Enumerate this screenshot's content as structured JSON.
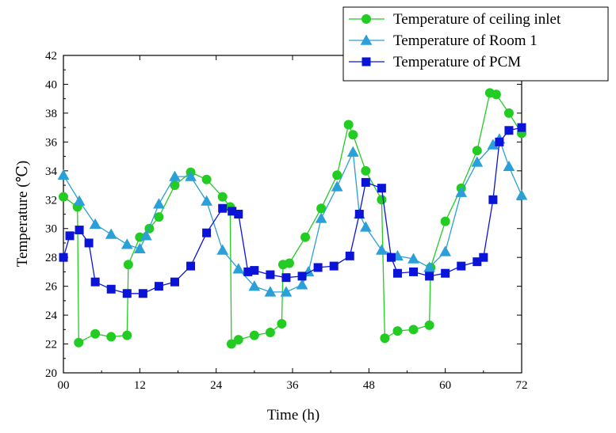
{
  "chart_data": {
    "type": "line",
    "title": "",
    "xlabel": "Time (h)",
    "ylabel": "Temperature (℃)",
    "xlim": [
      0,
      72
    ],
    "ylim": [
      20,
      42
    ],
    "x_ticks": [
      0,
      12,
      24,
      36,
      48,
      60,
      72
    ],
    "x_tick_labels": [
      "00",
      "12",
      "24",
      "36",
      "48",
      "60",
      "72"
    ],
    "y_ticks": [
      20,
      22,
      24,
      26,
      28,
      30,
      32,
      34,
      36,
      38,
      40,
      42
    ],
    "y_tick_labels": [
      "20",
      "22",
      "24",
      "26",
      "28",
      "30",
      "32",
      "34",
      "36",
      "38",
      "40",
      "42"
    ],
    "grid": false,
    "legend_position": "top-right",
    "series": [
      {
        "name": "Temperature of ceiling inlet",
        "color": "#22cc22",
        "marker": "circle",
        "x": [
          0,
          2.2,
          2.4,
          5,
          7.5,
          10,
          10.2,
          12,
          13.5,
          15,
          17.5,
          20,
          22.5,
          25,
          26.2,
          26.4,
          27.5,
          30,
          32.5,
          34.3,
          34.5,
          35.5,
          38,
          40.5,
          43,
          44.8,
          45.5,
          47.5,
          50,
          50.5,
          52.5,
          55,
          57.5,
          57.7,
          60,
          62.5,
          65,
          67,
          68,
          70,
          72
        ],
        "y": [
          32.2,
          31.5,
          22.1,
          22.7,
          22.5,
          22.6,
          27.5,
          29.4,
          30.0,
          30.8,
          33.0,
          33.9,
          33.4,
          32.2,
          31.5,
          22.0,
          22.3,
          22.6,
          22.8,
          23.4,
          27.5,
          27.6,
          29.4,
          31.4,
          33.7,
          37.2,
          36.5,
          34.0,
          32.0,
          22.4,
          22.9,
          23.0,
          23.3,
          27.3,
          30.5,
          32.8,
          35.4,
          39.4,
          39.3,
          38.0,
          36.6
        ]
      },
      {
        "name": "Temperature of Room 1",
        "color": "#2a9fd8",
        "marker": "triangle",
        "x": [
          0,
          2.5,
          5,
          7.5,
          10,
          12,
          13,
          15,
          17.5,
          20,
          22.5,
          25,
          27.5,
          30,
          32.5,
          35,
          37.5,
          38.5,
          40.5,
          43,
          45.5,
          46.5,
          47.5,
          50,
          52.5,
          55,
          57.5,
          60,
          62.5,
          65,
          67.5,
          68.5,
          70,
          72
        ],
        "y": [
          33.7,
          31.9,
          30.3,
          29.6,
          28.9,
          28.6,
          29.5,
          31.7,
          33.6,
          33.6,
          31.9,
          28.5,
          27.2,
          26.0,
          25.6,
          25.6,
          26.1,
          27.0,
          30.7,
          32.9,
          35.3,
          31.0,
          30.1,
          28.5,
          28.1,
          27.9,
          27.3,
          28.4,
          32.5,
          34.6,
          35.8,
          36.2,
          34.3,
          32.3
        ]
      },
      {
        "name": "Temperature of PCM",
        "color": "#0a14d8",
        "marker": "square",
        "x": [
          0,
          1,
          2.5,
          4,
          5,
          7.5,
          10,
          12.5,
          15,
          17.5,
          20,
          22.5,
          25,
          26.5,
          27.5,
          29,
          30,
          32.5,
          35,
          37.5,
          40,
          42.5,
          45,
          46.5,
          47.5,
          50,
          51.5,
          52.5,
          55,
          57.5,
          60,
          62.5,
          65,
          66,
          67.5,
          68.5,
          70,
          72
        ],
        "y": [
          28.0,
          29.5,
          29.9,
          29.0,
          26.3,
          25.8,
          25.5,
          25.5,
          26.0,
          26.3,
          27.4,
          29.7,
          31.4,
          31.2,
          31.0,
          27.0,
          27.1,
          26.8,
          26.6,
          26.7,
          27.3,
          27.4,
          28.1,
          31.0,
          33.2,
          32.8,
          28.0,
          26.9,
          27.0,
          26.7,
          26.9,
          27.4,
          27.7,
          28.0,
          32.0,
          36.0,
          36.8,
          37.0
        ]
      }
    ]
  }
}
